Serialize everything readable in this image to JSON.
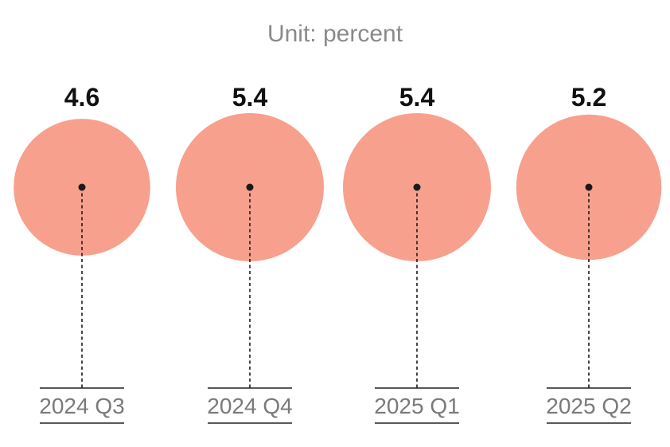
{
  "unit_label": "Unit: percent",
  "colors": {
    "bubble": "#f7a08e",
    "dot": "#1a1a1a",
    "value_text": "#111111",
    "unit_text": "#8a8a8a",
    "category_text": "#7a7a7a",
    "rule": "#222222"
  },
  "chart_data": {
    "type": "bubble",
    "title": "",
    "unit": "Unit: percent",
    "categories": [
      "2024 Q3",
      "2024 Q4",
      "2025 Q1",
      "2025 Q2"
    ],
    "values": [
      4.6,
      5.4,
      5.4,
      5.2
    ],
    "value_labels": [
      "4.6",
      "5.4",
      "5.4",
      "5.2"
    ],
    "encoding": "circle area proportional to value",
    "grid": false,
    "legend": "none"
  }
}
